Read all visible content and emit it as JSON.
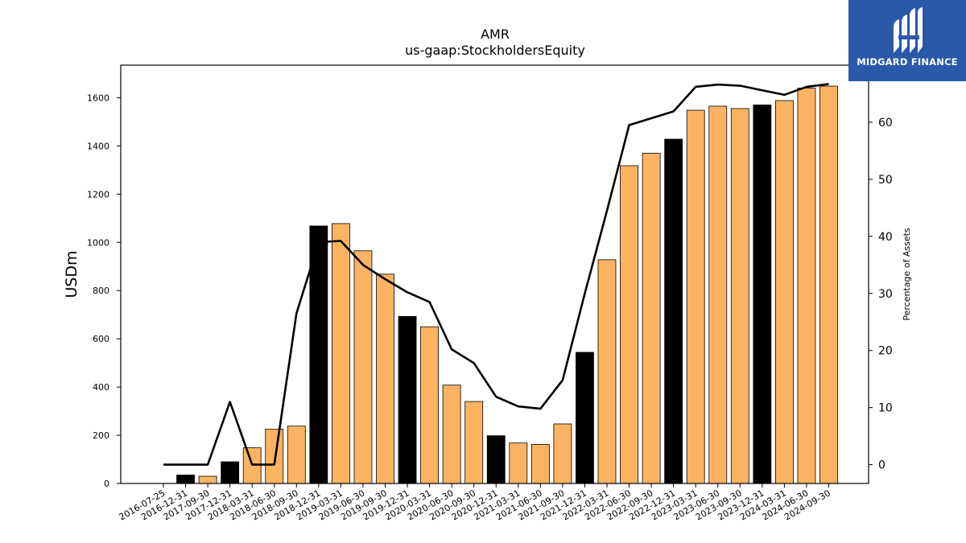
{
  "logo": {
    "text": "MIDGARD FINANCE",
    "color": "#2b58a8"
  },
  "colors": {
    "bar_default": "#fdb462",
    "bar_highlight": "#000000",
    "line": "#000000"
  },
  "chart_data": {
    "type": "bar",
    "title": "AMR",
    "subtitle": "us-gaap:StockholdersEquity",
    "ylabel": "USDm",
    "y2label": "Percentage of Assets",
    "ylim": [
      0,
      1735
    ],
    "y2lim": [
      -3.3,
      70.0
    ],
    "yticks": [
      0,
      200,
      400,
      600,
      800,
      1000,
      1200,
      1400,
      1600
    ],
    "y2ticks": [
      0,
      10,
      20,
      30,
      40,
      50,
      60
    ],
    "categories": [
      "2016-07-25",
      "2016-12-31",
      "2017-09-30",
      "2017-12-31",
      "2018-03-31",
      "2018-06-30",
      "2018-09-30",
      "2018-12-31",
      "2019-03-31",
      "2019-06-30",
      "2019-09-30",
      "2019-12-31",
      "2020-03-31",
      "2020-06-30",
      "2020-09-30",
      "2020-12-31",
      "2021-03-31",
      "2021-06-30",
      "2021-09-30",
      "2021-12-31",
      "2022-03-31",
      "2022-06-30",
      "2022-09-30",
      "2022-12-31",
      "2023-03-31",
      "2023-06-30",
      "2023-09-30",
      "2023-12-31",
      "2024-03-31",
      "2024-06-30",
      "2024-09-30"
    ],
    "series": [
      {
        "type": "bar",
        "values": [
          0,
          35,
          30,
          90,
          148,
          225,
          238,
          1068,
          1078,
          965,
          868,
          693,
          650,
          408,
          340,
          198,
          168,
          162,
          247,
          544,
          928,
          1318,
          1370,
          1428,
          1548,
          1565,
          1555,
          1570,
          1588,
          1640,
          1648
        ],
        "highlight": [
          false,
          true,
          false,
          true,
          false,
          false,
          false,
          true,
          false,
          false,
          false,
          true,
          false,
          false,
          false,
          true,
          false,
          false,
          false,
          true,
          false,
          false,
          false,
          true,
          false,
          false,
          false,
          true,
          false,
          false,
          false
        ]
      },
      {
        "type": "line",
        "axis": "right",
        "values": [
          0,
          0,
          0,
          11,
          0,
          0,
          26.5,
          39,
          39.2,
          35,
          32.5,
          30.2,
          28.5,
          20.2,
          17.8,
          11.9,
          10.2,
          9.8,
          14.8,
          30,
          44.5,
          59.5,
          60.7,
          61.9,
          66.2,
          66.6,
          66.4,
          65.6,
          64.8,
          66.2,
          66.7
        ]
      }
    ],
    "grid": false
  }
}
